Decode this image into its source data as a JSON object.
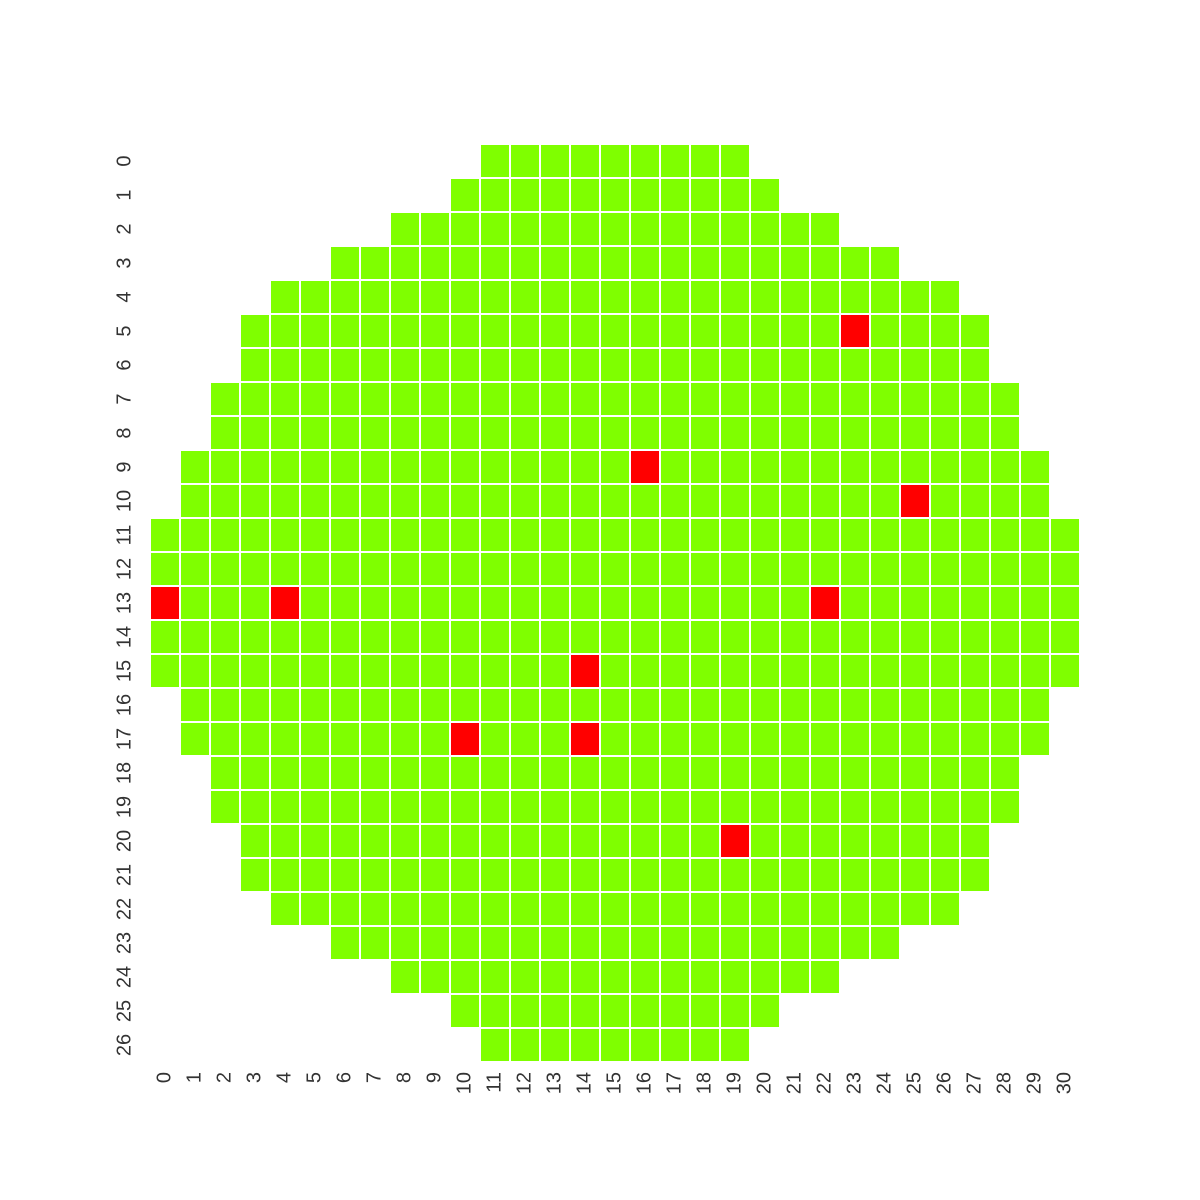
{
  "chart_data": {
    "type": "heatmap",
    "title": "",
    "xlabel": "",
    "ylabel": "",
    "grid": false,
    "legend": "none",
    "colors": {
      "pass": "#7fff00",
      "fail": "#ff0000",
      "cell_border": "#ffffff",
      "background": "#ffffff"
    },
    "x_ticks": [
      "0",
      "1",
      "2",
      "3",
      "4",
      "5",
      "6",
      "7",
      "8",
      "9",
      "10",
      "11",
      "12",
      "13",
      "14",
      "15",
      "16",
      "17",
      "18",
      "19",
      "20",
      "21",
      "22",
      "23",
      "24",
      "25",
      "26",
      "27",
      "28",
      "29",
      "30"
    ],
    "y_ticks": [
      "0",
      "1",
      "2",
      "3",
      "4",
      "5",
      "6",
      "7",
      "8",
      "9",
      "10",
      "11",
      "12",
      "13",
      "14",
      "15",
      "16",
      "17",
      "18",
      "19",
      "20",
      "21",
      "22",
      "23",
      "24",
      "25",
      "26"
    ],
    "rows": [
      {
        "row": 0,
        "col_start": 11,
        "col_end": 19
      },
      {
        "row": 1,
        "col_start": 10,
        "col_end": 20
      },
      {
        "row": 2,
        "col_start": 8,
        "col_end": 22
      },
      {
        "row": 3,
        "col_start": 6,
        "col_end": 24
      },
      {
        "row": 4,
        "col_start": 4,
        "col_end": 26
      },
      {
        "row": 5,
        "col_start": 3,
        "col_end": 27
      },
      {
        "row": 6,
        "col_start": 3,
        "col_end": 27
      },
      {
        "row": 7,
        "col_start": 2,
        "col_end": 28
      },
      {
        "row": 8,
        "col_start": 2,
        "col_end": 28
      },
      {
        "row": 9,
        "col_start": 1,
        "col_end": 29
      },
      {
        "row": 10,
        "col_start": 1,
        "col_end": 29
      },
      {
        "row": 11,
        "col_start": 0,
        "col_end": 30
      },
      {
        "row": 12,
        "col_start": 0,
        "col_end": 30
      },
      {
        "row": 13,
        "col_start": 0,
        "col_end": 30
      },
      {
        "row": 14,
        "col_start": 0,
        "col_end": 30
      },
      {
        "row": 15,
        "col_start": 0,
        "col_end": 30
      },
      {
        "row": 16,
        "col_start": 1,
        "col_end": 29
      },
      {
        "row": 17,
        "col_start": 1,
        "col_end": 29
      },
      {
        "row": 18,
        "col_start": 2,
        "col_end": 28
      },
      {
        "row": 19,
        "col_start": 2,
        "col_end": 28
      },
      {
        "row": 20,
        "col_start": 3,
        "col_end": 27
      },
      {
        "row": 21,
        "col_start": 3,
        "col_end": 27
      },
      {
        "row": 22,
        "col_start": 4,
        "col_end": 26
      },
      {
        "row": 23,
        "col_start": 6,
        "col_end": 24
      },
      {
        "row": 24,
        "col_start": 8,
        "col_end": 22
      },
      {
        "row": 25,
        "col_start": 10,
        "col_end": 20
      },
      {
        "row": 26,
        "col_start": 11,
        "col_end": 19
      }
    ],
    "failed_cells": [
      {
        "row": 5,
        "col": 23
      },
      {
        "row": 9,
        "col": 16
      },
      {
        "row": 10,
        "col": 25
      },
      {
        "row": 13,
        "col": 0
      },
      {
        "row": 13,
        "col": 4
      },
      {
        "row": 13,
        "col": 22
      },
      {
        "row": 15,
        "col": 14
      },
      {
        "row": 17,
        "col": 10
      },
      {
        "row": 17,
        "col": 14
      },
      {
        "row": 20,
        "col": 19
      }
    ]
  }
}
